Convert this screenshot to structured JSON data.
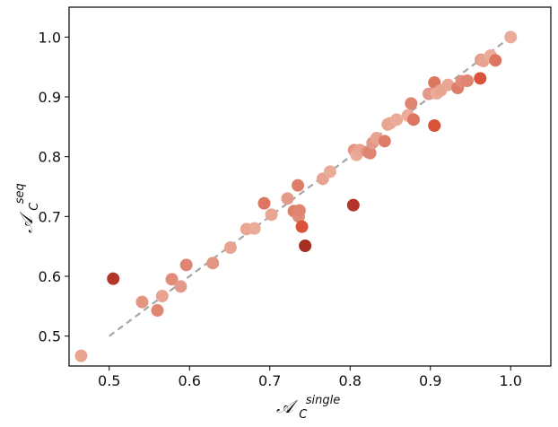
{
  "chart_data": {
    "type": "scatter",
    "title": "",
    "xlabel": {
      "main": "𝒜",
      "sub": "C",
      "sup": "single"
    },
    "ylabel": {
      "main": "𝒜",
      "sub": "C",
      "sup": "seq"
    },
    "xlim": [
      0.45,
      1.05
    ],
    "ylim": [
      0.45,
      1.05
    ],
    "xticks": [
      "0.5",
      "0.6",
      "0.7",
      "0.8",
      "0.9",
      "1.0"
    ],
    "yticks": [
      "0.5",
      "0.6",
      "0.7",
      "0.8",
      "0.9",
      "1.0"
    ],
    "grid": false,
    "reference_line": {
      "x": [
        0.5,
        1.0
      ],
      "y": [
        0.5,
        1.0
      ],
      "style": "dashed",
      "color": "#a6a6a6"
    },
    "points": [
      {
        "x": 0.465,
        "y": 0.467,
        "color": "#e8a491"
      },
      {
        "x": 0.505,
        "y": 0.596,
        "color": "#b3352a"
      },
      {
        "x": 0.541,
        "y": 0.557,
        "color": "#e49582"
      },
      {
        "x": 0.56,
        "y": 0.543,
        "color": "#df8572"
      },
      {
        "x": 0.566,
        "y": 0.567,
        "color": "#e8a491"
      },
      {
        "x": 0.578,
        "y": 0.595,
        "color": "#e28c78"
      },
      {
        "x": 0.589,
        "y": 0.583,
        "color": "#e39a8a"
      },
      {
        "x": 0.596,
        "y": 0.619,
        "color": "#df8572"
      },
      {
        "x": 0.629,
        "y": 0.622,
        "color": "#e49582"
      },
      {
        "x": 0.651,
        "y": 0.648,
        "color": "#e8a491"
      },
      {
        "x": 0.671,
        "y": 0.679,
        "color": "#e9a692"
      },
      {
        "x": 0.681,
        "y": 0.68,
        "color": "#eaab99"
      },
      {
        "x": 0.693,
        "y": 0.722,
        "color": "#dc7660"
      },
      {
        "x": 0.702,
        "y": 0.703,
        "color": "#e9a692"
      },
      {
        "x": 0.722,
        "y": 0.73,
        "color": "#e39a8a"
      },
      {
        "x": 0.73,
        "y": 0.709,
        "color": "#de7d68"
      },
      {
        "x": 0.735,
        "y": 0.752,
        "color": "#de7d68"
      },
      {
        "x": 0.736,
        "y": 0.7,
        "color": "#e28c78"
      },
      {
        "x": 0.737,
        "y": 0.71,
        "color": "#df8572"
      },
      {
        "x": 0.74,
        "y": 0.683,
        "color": "#d9533b"
      },
      {
        "x": 0.744,
        "y": 0.651,
        "color": "#a52e22"
      },
      {
        "x": 0.766,
        "y": 0.763,
        "color": "#e8a491"
      },
      {
        "x": 0.775,
        "y": 0.775,
        "color": "#eaab99"
      },
      {
        "x": 0.804,
        "y": 0.719,
        "color": "#b3352a"
      },
      {
        "x": 0.805,
        "y": 0.811,
        "color": "#e49582"
      },
      {
        "x": 0.808,
        "y": 0.803,
        "color": "#eaab99"
      },
      {
        "x": 0.812,
        "y": 0.811,
        "color": "#e8a491"
      },
      {
        "x": 0.822,
        "y": 0.808,
        "color": "#e28c78"
      },
      {
        "x": 0.825,
        "y": 0.806,
        "color": "#df8572"
      },
      {
        "x": 0.828,
        "y": 0.823,
        "color": "#e39a8a"
      },
      {
        "x": 0.833,
        "y": 0.831,
        "color": "#e8a491"
      },
      {
        "x": 0.843,
        "y": 0.826,
        "color": "#de7d68"
      },
      {
        "x": 0.847,
        "y": 0.854,
        "color": "#e8a491"
      },
      {
        "x": 0.85,
        "y": 0.856,
        "color": "#e9a692"
      },
      {
        "x": 0.858,
        "y": 0.862,
        "color": "#eaab99"
      },
      {
        "x": 0.872,
        "y": 0.869,
        "color": "#eaab99"
      },
      {
        "x": 0.876,
        "y": 0.889,
        "color": "#df8572"
      },
      {
        "x": 0.879,
        "y": 0.862,
        "color": "#dc7660"
      },
      {
        "x": 0.898,
        "y": 0.905,
        "color": "#e39a8a"
      },
      {
        "x": 0.905,
        "y": 0.924,
        "color": "#dc7660"
      },
      {
        "x": 0.905,
        "y": 0.852,
        "color": "#d9533b"
      },
      {
        "x": 0.908,
        "y": 0.906,
        "color": "#eaab99"
      },
      {
        "x": 0.913,
        "y": 0.911,
        "color": "#e8a491"
      },
      {
        "x": 0.922,
        "y": 0.92,
        "color": "#e9a692"
      },
      {
        "x": 0.934,
        "y": 0.915,
        "color": "#de7d68"
      },
      {
        "x": 0.939,
        "y": 0.926,
        "color": "#e28c78"
      },
      {
        "x": 0.946,
        "y": 0.927,
        "color": "#df8572"
      },
      {
        "x": 0.962,
        "y": 0.931,
        "color": "#d9533b"
      },
      {
        "x": 0.963,
        "y": 0.962,
        "color": "#e39a8a"
      },
      {
        "x": 0.966,
        "y": 0.96,
        "color": "#e8a491"
      },
      {
        "x": 0.975,
        "y": 0.969,
        "color": "#eaab99"
      },
      {
        "x": 0.981,
        "y": 0.961,
        "color": "#dc7660"
      },
      {
        "x": 1.0,
        "y": 1.0,
        "color": "#eaab99"
      }
    ],
    "style": {
      "frame_color": "#000000",
      "point_radius": 7
    }
  }
}
